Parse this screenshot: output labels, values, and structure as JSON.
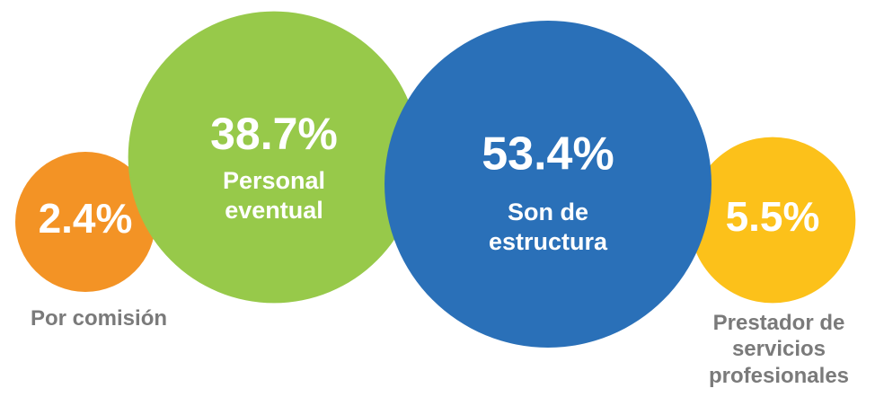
{
  "chart_data": {
    "type": "bubble",
    "categories": [
      "Por comisión",
      "Personal eventual",
      "Son de estructura",
      "Prestador de servicios profesionales"
    ],
    "values": [
      2.4,
      38.7,
      53.4,
      5.5
    ],
    "value_labels": [
      "2.4%",
      "38.7%",
      "53.4%",
      "5.5%"
    ],
    "colors": [
      "#f39325",
      "#97c94a",
      "#2a70b8",
      "#fcc11a"
    ]
  }
}
